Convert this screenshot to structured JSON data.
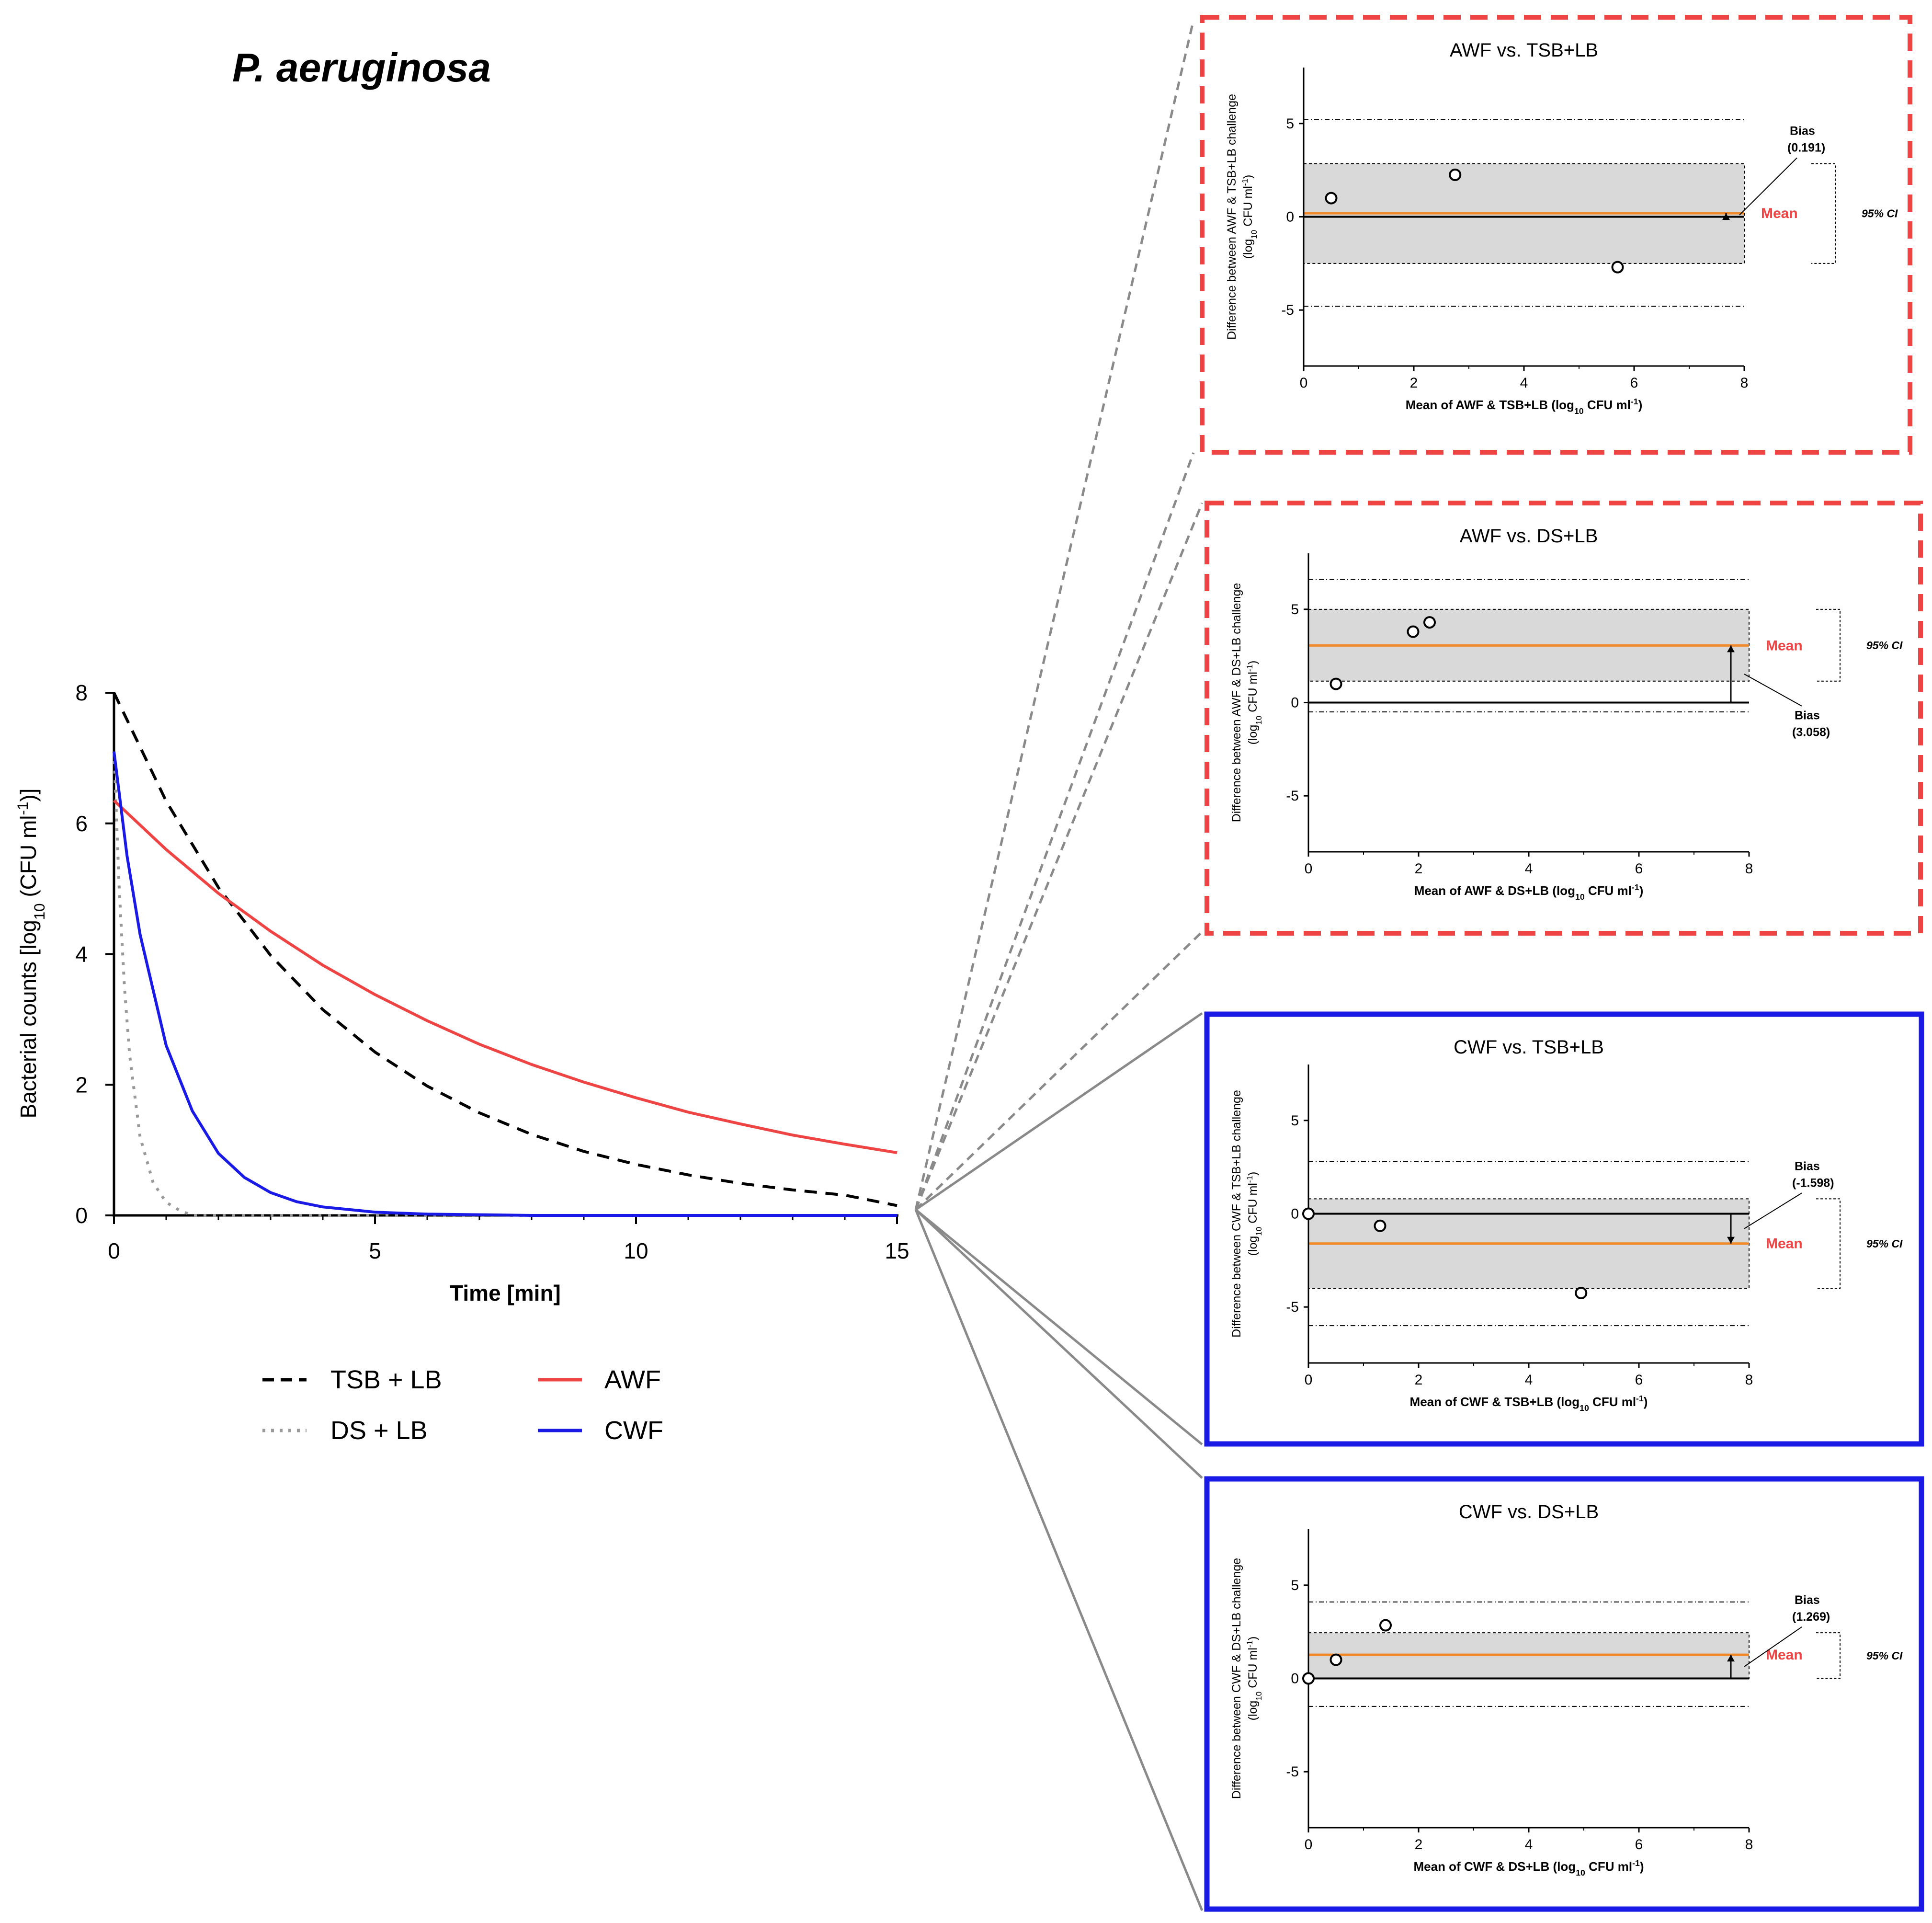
{
  "title": "P. aeruginosa",
  "colors": {
    "awf": "#ef4444",
    "cwf": "#1a1ae6",
    "tsb": "#000000",
    "ds": "#999999",
    "mean_line": "#f0892a",
    "ci_band": "#d9d9d9",
    "red_box": "#ef4444",
    "blue_box": "#1a1ae6"
  },
  "chart_data": [
    {
      "type": "line",
      "title": "P. aeruginosa",
      "xlabel": "Time [min]",
      "ylabel_parts": [
        "Bacterial counts [log",
        "10",
        " (CFU ml",
        "-1",
        ")]"
      ],
      "xlim": [
        0,
        15
      ],
      "ylim": [
        0,
        8
      ],
      "xticks": [
        "0",
        "5",
        "10",
        "15"
      ],
      "yticks": [
        "0",
        "2",
        "4",
        "6",
        "8"
      ],
      "series": [
        {
          "name": "TSB + LB",
          "style": "dashed",
          "color": "#000000",
          "x": [
            0,
            1,
            2,
            3,
            4,
            5,
            6,
            7,
            8,
            9,
            10,
            11,
            12,
            13,
            14,
            15
          ],
          "values": [
            8.0,
            6.34,
            5.02,
            3.98,
            3.15,
            2.5,
            1.98,
            1.57,
            1.24,
            0.98,
            0.78,
            0.62,
            0.49,
            0.39,
            0.31,
            0.15
          ]
        },
        {
          "name": "DS + LB",
          "style": "dotted",
          "color": "#999999",
          "x": [
            0,
            0.1,
            0.2,
            0.3,
            0.5,
            0.75,
            1.0,
            1.25,
            1.5,
            15
          ],
          "values": [
            7.1,
            5.0,
            3.5,
            2.45,
            1.2,
            0.5,
            0.2,
            0.08,
            0.0,
            0.0
          ]
        },
        {
          "name": "AWF",
          "style": "solid",
          "color": "#ef4444",
          "x": [
            0,
            1,
            2,
            3,
            4,
            5,
            6,
            7,
            8,
            9,
            10,
            11,
            12,
            13,
            14,
            15
          ],
          "values": [
            6.35,
            5.6,
            4.93,
            4.35,
            3.83,
            3.38,
            2.98,
            2.62,
            2.31,
            2.04,
            1.8,
            1.58,
            1.4,
            1.23,
            1.09,
            0.96
          ]
        },
        {
          "name": "CWF",
          "style": "solid",
          "color": "#1a1ae6",
          "x": [
            0,
            0.25,
            0.5,
            1,
            1.5,
            2,
            2.5,
            3,
            3.5,
            4,
            5,
            6,
            7,
            8,
            15
          ],
          "values": [
            7.1,
            5.5,
            4.3,
            2.6,
            1.6,
            0.95,
            0.58,
            0.35,
            0.21,
            0.13,
            0.05,
            0.02,
            0.01,
            0.0,
            0.0
          ]
        }
      ],
      "legend": [
        "TSB + LB",
        "AWF",
        "DS + LB",
        "CWF"
      ]
    },
    {
      "type": "scatter",
      "title": "AWF vs. TSB+LB",
      "frame": "red-dashed",
      "xlabel_parts": [
        "Mean of AWF & TSB+LB (log",
        "10",
        " CFU ml",
        "-1",
        ")"
      ],
      "ylabel_line1": "Difference between AWF & TSB+LB  challenge",
      "ylabel_line2_parts": [
        "(log",
        "10",
        " CFU ml",
        "-1",
        ")"
      ],
      "xlim": [
        0,
        8
      ],
      "ylim": [
        -8,
        8
      ],
      "xticks": [
        "0",
        "2",
        "4",
        "6",
        "8"
      ],
      "yticks": [
        "5",
        "0",
        "-5"
      ],
      "points": [
        [
          0.5,
          1.0
        ],
        [
          2.75,
          2.25
        ],
        [
          5.7,
          -2.7
        ]
      ],
      "bias": 0.191,
      "ci_upper": 2.85,
      "ci_lower": -2.5,
      "loa_upper": 5.2,
      "loa_lower": -4.8,
      "bias_label": "Bias",
      "bias_value": "(0.191)",
      "mean_label": "Mean",
      "ci_label": "95% CI",
      "annot_layout": "bias-above"
    },
    {
      "type": "scatter",
      "title": "AWF vs. DS+LB",
      "frame": "red-dashed",
      "xlabel_parts": [
        "Mean of AWF & DS+LB (log",
        "10",
        " CFU ml",
        "-1",
        ")"
      ],
      "ylabel_line1": "Difference between AWF & DS+LB  challenge",
      "ylabel_line2_parts": [
        "(log",
        "10",
        " CFU ml",
        "-1",
        ")"
      ],
      "xlim": [
        0,
        8
      ],
      "ylim": [
        -8,
        8
      ],
      "xticks": [
        "0",
        "2",
        "4",
        "6",
        "8"
      ],
      "yticks": [
        "5",
        "0",
        "-5"
      ],
      "points": [
        [
          0.5,
          1.0
        ],
        [
          1.9,
          3.8
        ],
        [
          2.2,
          4.3
        ]
      ],
      "bias": 3.058,
      "ci_upper": 5.0,
      "ci_lower": 1.15,
      "loa_upper": 6.6,
      "loa_lower": -0.5,
      "bias_label": "Bias",
      "bias_value": "(3.058)",
      "mean_label": "Mean",
      "ci_label": "95% CI",
      "annot_layout": "bias-below"
    },
    {
      "type": "scatter",
      "title": "CWF vs. TSB+LB",
      "frame": "blue-solid",
      "xlabel_parts": [
        "Mean of CWF & TSB+LB (log",
        "10",
        " CFU ml",
        "-1",
        ")"
      ],
      "ylabel_line1": "Difference between CWF & TSB+LB  challenge",
      "ylabel_line2_parts": [
        "(log",
        "10",
        " CFU ml",
        "-1",
        ")"
      ],
      "xlim": [
        0,
        8
      ],
      "ylim": [
        -8,
        8
      ],
      "xticks": [
        "0",
        "2",
        "4",
        "6",
        "8"
      ],
      "yticks": [
        "5",
        "0",
        "-5"
      ],
      "points": [
        [
          0.0,
          0.0
        ],
        [
          1.3,
          -0.65
        ],
        [
          4.95,
          -4.25
        ]
      ],
      "bias": -1.598,
      "ci_upper": 0.8,
      "ci_lower": -4.0,
      "loa_upper": 2.8,
      "loa_lower": -6.0,
      "bias_label": "Bias",
      "bias_value": "(-1.598)",
      "mean_label": "Mean",
      "ci_label": "95% CI",
      "annot_layout": "bias-above"
    },
    {
      "type": "scatter",
      "title": "CWF vs. DS+LB",
      "frame": "blue-solid",
      "xlabel_parts": [
        "Mean of CWF & DS+LB (log",
        "10",
        " CFU ml",
        "-1",
        ")"
      ],
      "ylabel_line1": "Difference between CWF & DS+LB  challenge",
      "ylabel_line2_parts": [
        "(log",
        "10",
        " CFU ml",
        "-1",
        ")"
      ],
      "xlim": [
        0,
        8
      ],
      "ylim": [
        -8,
        8
      ],
      "xticks": [
        "0",
        "2",
        "4",
        "6",
        "8"
      ],
      "yticks": [
        "5",
        "0",
        "-5"
      ],
      "points": [
        [
          0.0,
          0.0
        ],
        [
          0.5,
          1.0
        ],
        [
          1.4,
          2.85
        ]
      ],
      "bias": 1.269,
      "ci_upper": 2.45,
      "ci_lower": 0.0,
      "loa_upper": 4.1,
      "loa_lower": -1.5,
      "bias_label": "Bias",
      "bias_value": "(1.269)",
      "mean_label": "Mean",
      "ci_label": "95% CI",
      "annot_layout": "bias-above"
    }
  ]
}
